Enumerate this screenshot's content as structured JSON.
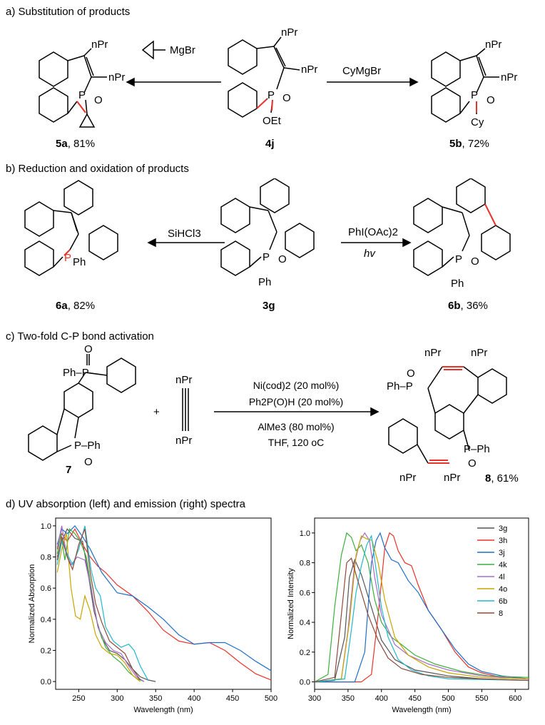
{
  "sections": {
    "a": "a) Substitution of products",
    "b": "b) Reduction and oxidation of products",
    "c": "c) Two-fold C-P bond activation",
    "d": "d) UV absorption (left) and emission (right) spectra"
  },
  "compounds": {
    "c5a": {
      "id": "5a",
      "yield": ", 81%"
    },
    "c4j": {
      "id": "4j"
    },
    "c5b": {
      "id": "5b",
      "yield": ", 72%"
    },
    "c6a": {
      "id": "6a",
      "yield": ", 82%"
    },
    "c3g": {
      "id": "3g"
    },
    "c6b": {
      "id": "6b",
      "yield": ", 36%"
    },
    "c7": {
      "id": "7"
    },
    "c8": {
      "id": "8",
      "yield": ", 61%"
    }
  },
  "reagents": {
    "a_left": "MgBr",
    "a_right": "CyMgBr",
    "b_left": "SiHCl3",
    "b_right_top": "PhI(OAc)2",
    "b_right_bottom": "hv",
    "c_line1": "Ni(cod)2  (20 mol%)",
    "c_line2": "Ph2P(O)H (20 mol%)",
    "c_line3": "AlMe3 (80 mol%)",
    "c_line4": "THF, 120 oC",
    "plus": "+"
  },
  "atoms": {
    "npr": "nPr",
    "p": "P",
    "o": "O",
    "oet": "OEt",
    "cy": "Cy",
    "ph": "Ph",
    "ph_p": "Ph–P",
    "p_ph": "P–Ph"
  },
  "colors": {
    "3g": "#555555",
    "3h": "#e8332a",
    "3j": "#1f6fc8",
    "4k": "#3cae3c",
    "4l": "#a86cc8",
    "4o": "#c8a400",
    "6b": "#22b8cc",
    "8": "#8b4a3a",
    "highlight": "#e8332a"
  },
  "chart_data": [
    {
      "type": "line",
      "title": "",
      "xlabel": "Wavelength (nm)",
      "ylabel": "Normalized Absorption",
      "xlim": [
        220,
        500
      ],
      "ylim": [
        -0.05,
        1.05
      ],
      "xticks": [
        250,
        300,
        350,
        400,
        450,
        500
      ],
      "yticks": [
        0.0,
        0.2,
        0.4,
        0.6,
        0.8,
        1.0
      ],
      "series": [
        {
          "name": "3g",
          "x": [
            222,
            228,
            235,
            245,
            255,
            262,
            270,
            280,
            290,
            300,
            310,
            320,
            330,
            340,
            350
          ],
          "y": [
            0.8,
            0.9,
            0.98,
            0.92,
            0.9,
            0.7,
            0.45,
            0.28,
            0.2,
            0.18,
            0.14,
            0.08,
            0.03,
            0.01,
            0.0
          ]
        },
        {
          "name": "3h",
          "x": [
            222,
            228,
            235,
            245,
            255,
            265,
            275,
            285,
            300,
            320,
            340,
            360,
            380,
            400,
            420,
            440,
            460,
            480,
            500
          ],
          "y": [
            0.85,
            0.95,
            0.9,
            0.98,
            0.88,
            0.8,
            0.74,
            0.7,
            0.62,
            0.55,
            0.45,
            0.33,
            0.26,
            0.24,
            0.25,
            0.2,
            0.12,
            0.05,
            0.01
          ]
        },
        {
          "name": "3j",
          "x": [
            222,
            228,
            235,
            245,
            255,
            265,
            280,
            300,
            320,
            340,
            360,
            380,
            400,
            420,
            440,
            460,
            480,
            500
          ],
          "y": [
            0.88,
            0.98,
            0.95,
            1.0,
            0.93,
            0.85,
            0.7,
            0.57,
            0.55,
            0.48,
            0.4,
            0.3,
            0.24,
            0.25,
            0.25,
            0.2,
            0.13,
            0.07
          ]
        },
        {
          "name": "4k",
          "x": [
            222,
            227,
            232,
            238,
            245,
            252,
            260,
            268,
            275,
            285,
            295,
            305,
            315,
            325,
            335
          ],
          "y": [
            0.82,
            0.95,
            0.78,
            0.98,
            0.95,
            0.9,
            0.8,
            0.55,
            0.35,
            0.22,
            0.16,
            0.12,
            0.06,
            0.02,
            0.0
          ]
        },
        {
          "name": "4l",
          "x": [
            222,
            228,
            234,
            240,
            248,
            258,
            266,
            275,
            285,
            295,
            305,
            315,
            325,
            335
          ],
          "y": [
            0.86,
            1.0,
            0.82,
            0.75,
            0.8,
            0.78,
            0.6,
            0.35,
            0.25,
            0.2,
            0.18,
            0.1,
            0.03,
            0.0
          ]
        },
        {
          "name": "4o",
          "x": [
            222,
            228,
            234,
            240,
            246,
            252,
            258,
            265,
            272,
            280,
            290,
            300,
            310,
            320,
            330
          ],
          "y": [
            0.7,
            0.85,
            0.95,
            0.6,
            0.42,
            0.4,
            0.55,
            0.45,
            0.3,
            0.22,
            0.18,
            0.17,
            0.12,
            0.04,
            0.0
          ]
        },
        {
          "name": "6b",
          "x": [
            222,
            228,
            235,
            242,
            250,
            258,
            266,
            272,
            278,
            285,
            295,
            305,
            315,
            322,
            330,
            340
          ],
          "y": [
            0.75,
            0.9,
            0.82,
            0.75,
            0.85,
            1.0,
            0.72,
            0.6,
            0.55,
            0.35,
            0.26,
            0.22,
            0.24,
            0.2,
            0.1,
            0.01
          ]
        },
        {
          "name": "8",
          "x": [
            222,
            228,
            235,
            242,
            250,
            258,
            265,
            272,
            280,
            290,
            300,
            310,
            320,
            330
          ],
          "y": [
            0.78,
            0.93,
            0.8,
            0.72,
            0.88,
            0.98,
            0.7,
            0.5,
            0.38,
            0.26,
            0.22,
            0.18,
            0.08,
            0.01
          ]
        }
      ]
    },
    {
      "type": "line",
      "title": "",
      "xlabel": "Wavelength (nm)",
      "ylabel": "Normalized Intensity",
      "xlim": [
        300,
        620
      ],
      "ylim": [
        -0.05,
        1.1
      ],
      "xticks": [
        300,
        350,
        400,
        450,
        500,
        550,
        600
      ],
      "yticks": [
        0.0,
        0.2,
        0.4,
        0.6,
        0.8,
        1.0
      ],
      "legend": "top-right",
      "series": [
        {
          "name": "3g",
          "x": [
            300,
            330,
            345,
            352,
            360,
            370,
            385,
            400,
            420,
            450,
            500,
            550,
            620
          ],
          "y": [
            0.0,
            0.01,
            0.3,
            0.7,
            0.82,
            0.72,
            0.5,
            0.28,
            0.15,
            0.08,
            0.04,
            0.02,
            0.01
          ]
        },
        {
          "name": "3h",
          "x": [
            300,
            370,
            385,
            395,
            405,
            412,
            418,
            425,
            435,
            445,
            455,
            470,
            490,
            510,
            530,
            550,
            580,
            620
          ],
          "y": [
            0.0,
            0.0,
            0.05,
            0.45,
            0.9,
            1.0,
            0.98,
            0.88,
            0.8,
            0.78,
            0.65,
            0.48,
            0.35,
            0.2,
            0.1,
            0.06,
            0.03,
            0.02
          ]
        },
        {
          "name": "3j",
          "x": [
            300,
            360,
            375,
            385,
            392,
            398,
            405,
            415,
            425,
            440,
            455,
            470,
            490,
            510,
            530,
            550,
            580,
            620
          ],
          "y": [
            0.0,
            0.0,
            0.2,
            0.8,
            0.95,
            1.0,
            0.9,
            0.82,
            0.8,
            0.68,
            0.6,
            0.48,
            0.35,
            0.22,
            0.12,
            0.07,
            0.04,
            0.02
          ]
        },
        {
          "name": "4k",
          "x": [
            300,
            320,
            330,
            340,
            348,
            355,
            362,
            370,
            380,
            390,
            400,
            415,
            430,
            450,
            480,
            520,
            560,
            620
          ],
          "y": [
            0.0,
            0.05,
            0.5,
            0.85,
            1.0,
            0.97,
            0.88,
            0.92,
            0.8,
            0.55,
            0.4,
            0.3,
            0.25,
            0.18,
            0.12,
            0.07,
            0.04,
            0.03
          ]
        },
        {
          "name": "4l",
          "x": [
            300,
            340,
            350,
            360,
            368,
            375,
            382,
            390,
            400,
            420,
            440,
            470,
            500,
            550,
            620
          ],
          "y": [
            0.0,
            0.02,
            0.35,
            0.8,
            0.95,
            1.0,
            0.95,
            0.7,
            0.45,
            0.25,
            0.18,
            0.12,
            0.08,
            0.04,
            0.02
          ]
        },
        {
          "name": "4o",
          "x": [
            300,
            340,
            352,
            362,
            370,
            378,
            386,
            395,
            405,
            420,
            440,
            470,
            500,
            550,
            620
          ],
          "y": [
            0.0,
            0.02,
            0.4,
            0.85,
            0.98,
            0.96,
            0.95,
            0.8,
            0.55,
            0.3,
            0.18,
            0.1,
            0.06,
            0.03,
            0.02
          ]
        },
        {
          "name": "6b",
          "x": [
            300,
            345,
            355,
            362,
            370,
            378,
            385,
            392,
            400,
            410,
            425,
            445,
            470,
            500,
            620
          ],
          "y": [
            0.0,
            0.02,
            0.35,
            0.6,
            0.78,
            0.92,
            0.98,
            0.75,
            0.5,
            0.3,
            0.15,
            0.08,
            0.04,
            0.02,
            0.01
          ]
        },
        {
          "name": "8",
          "x": [
            300,
            330,
            340,
            348,
            355,
            362,
            370,
            380,
            395,
            410,
            430,
            460,
            500,
            550,
            620
          ],
          "y": [
            0.0,
            0.03,
            0.45,
            0.8,
            0.83,
            0.72,
            0.6,
            0.45,
            0.28,
            0.16,
            0.09,
            0.05,
            0.03,
            0.02,
            0.01
          ]
        }
      ]
    }
  ]
}
